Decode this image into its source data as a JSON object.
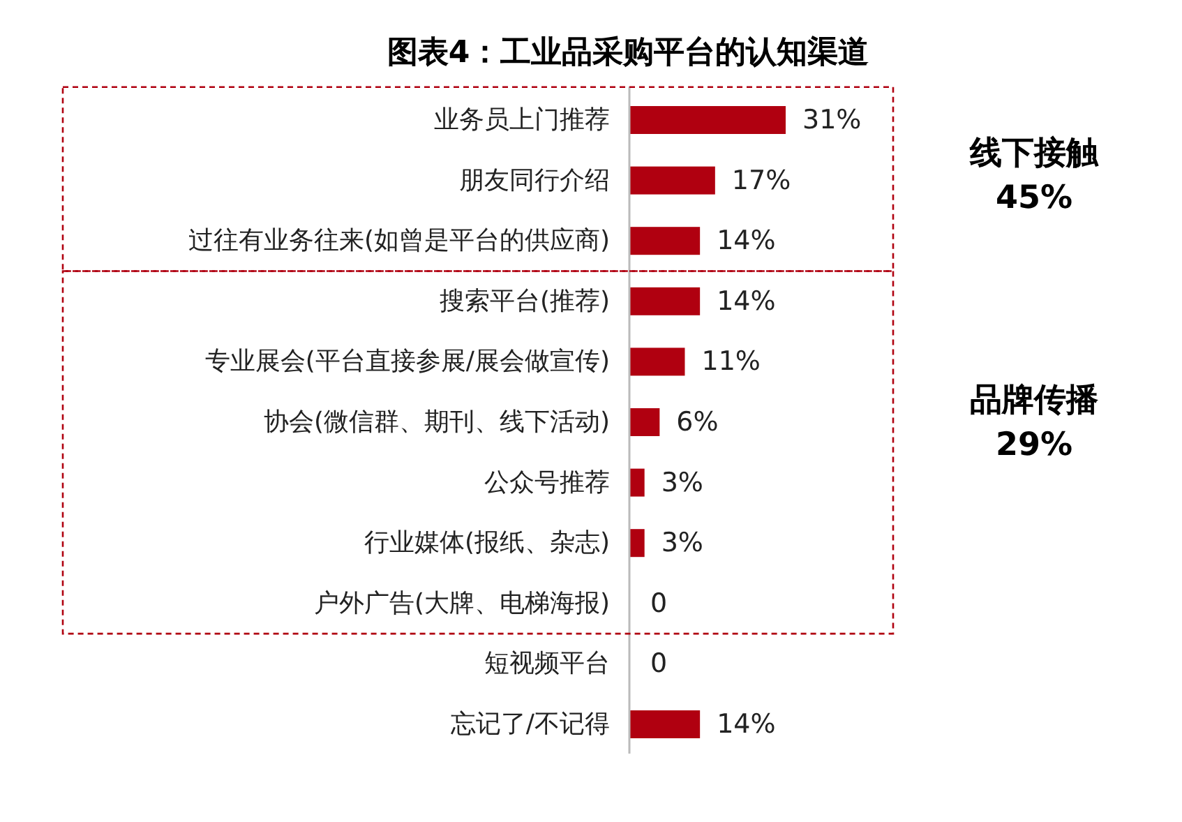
{
  "chart_data": {
    "type": "bar",
    "orientation": "horizontal",
    "title": "图表4：工业品采购平台的认知渠道",
    "categories": [
      "业务员上门推荐",
      "朋友同行介绍",
      "过往有业务往来(如曾是平台的供应商)",
      "搜索平台(推荐)",
      "专业展会(平台直接参展/展会做宣传)",
      "协会(微信群、期刊、线下活动)",
      "公众号推荐",
      "行业媒体(报纸、杂志)",
      "户外广告(大牌、电梯海报)",
      "短视频平台",
      "忘记了/不记得"
    ],
    "values": [
      31,
      17,
      14,
      14,
      11,
      6,
      3,
      3,
      0,
      0,
      14
    ],
    "value_labels": [
      "31%",
      "17%",
      "14%",
      "14%",
      "11%",
      "6%",
      "3%",
      "3%",
      "0",
      "0",
      "14%"
    ],
    "color": "#b00010",
    "annotations": [
      "线下接触",
      "45%",
      "品牌传播",
      "29%"
    ]
  }
}
